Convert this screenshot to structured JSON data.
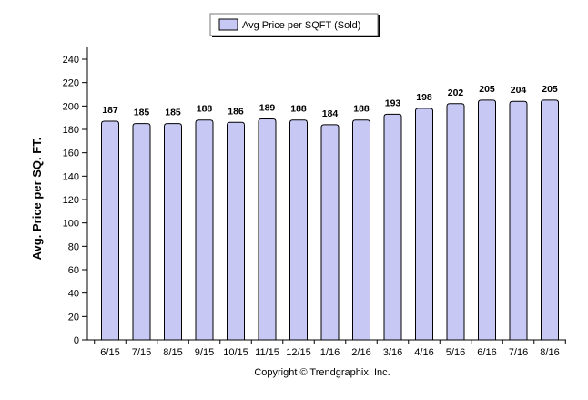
{
  "chart_data": {
    "type": "bar",
    "legend": {
      "label": "Avg Price per SQFT (Sold)",
      "placement": "top-center"
    },
    "ylabel": "Avg. Price per SQ. FT.",
    "xlabel": "",
    "ylim": [
      0,
      240
    ],
    "yticks": [
      0,
      20,
      40,
      60,
      80,
      100,
      120,
      140,
      160,
      180,
      200,
      220,
      240
    ],
    "categories": [
      "6/15",
      "7/15",
      "8/15",
      "9/15",
      "10/15",
      "11/15",
      "12/15",
      "1/16",
      "2/16",
      "3/16",
      "4/16",
      "5/16",
      "6/16",
      "7/16",
      "8/16"
    ],
    "values": [
      187,
      185,
      185,
      188,
      186,
      189,
      188,
      184,
      188,
      193,
      198,
      202,
      205,
      204,
      205
    ],
    "data_labels": true,
    "grid": false,
    "colors": {
      "bar_fill": "#c8c8f5",
      "bar_stroke": "#000000"
    }
  },
  "footer": {
    "copyright": "Copyright © Trendgraphix, Inc."
  }
}
